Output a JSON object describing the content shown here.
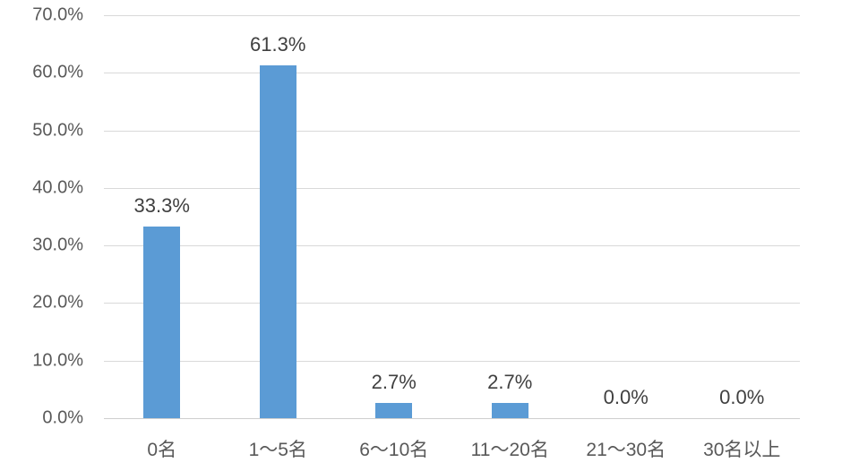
{
  "chart_data": {
    "type": "bar",
    "title": "",
    "xlabel": "",
    "ylabel": "",
    "categories": [
      "0名",
      "1～5名",
      "6～10名",
      "11～20名",
      "21～30名",
      "30名以上"
    ],
    "values": [
      33.3,
      61.3,
      2.7,
      2.7,
      0.0,
      0.0
    ],
    "data_labels": [
      "33.3%",
      "61.3%",
      "2.7%",
      "2.7%",
      "0.0%",
      "0.0%"
    ],
    "y_ticks": [
      {
        "label": "70.0%",
        "value": 70
      },
      {
        "label": "60.0%",
        "value": 60
      },
      {
        "label": "50.0%",
        "value": 50
      },
      {
        "label": "40.0%",
        "value": 40
      },
      {
        "label": "30.0%",
        "value": 30
      },
      {
        "label": "20.0%",
        "value": 20
      },
      {
        "label": "10.0%",
        "value": 10
      },
      {
        "label": "0.0%",
        "value": 0
      }
    ],
    "ylim": [
      0,
      70
    ],
    "grid": true,
    "legend": "none",
    "bar_color": "#5B9BD5",
    "gridline_color": "#D9D9D9",
    "axis_line_color": "#CFCFCF",
    "axis_label_color": "#595959",
    "data_label_color": "#404040",
    "background_color": "#FFFFFF"
  }
}
